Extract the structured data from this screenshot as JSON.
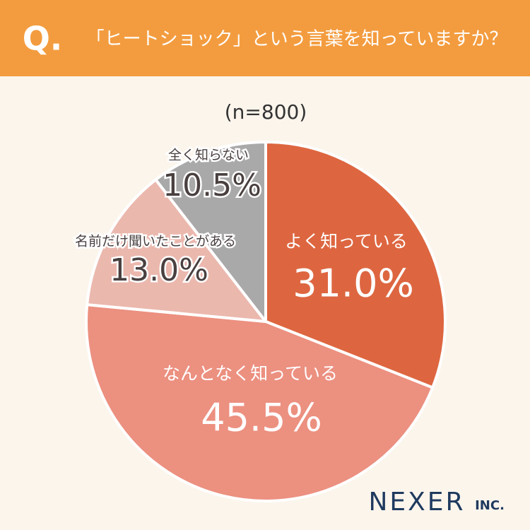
{
  "header": {
    "badge": "Q."
  },
  "chart_data": {
    "type": "pie",
    "title": "「ヒートショック」という言葉を知っていますか？",
    "subtitle": "(n=800)",
    "categories": [
      "よく知っている",
      "なんとなく知っている",
      "名前だけ聞いたことがある",
      "全く知らない"
    ],
    "values": [
      31.0,
      45.5,
      13.0,
      10.5
    ],
    "value_labels": [
      "31.0%",
      "45.5%",
      "13.0%",
      "10.5%"
    ],
    "colors": [
      "#dd6640",
      "#ec9080",
      "#ebb8ae",
      "#a9a9a9"
    ]
  },
  "footer": {
    "logo": "NEXER",
    "logo_suffix": "INC."
  }
}
